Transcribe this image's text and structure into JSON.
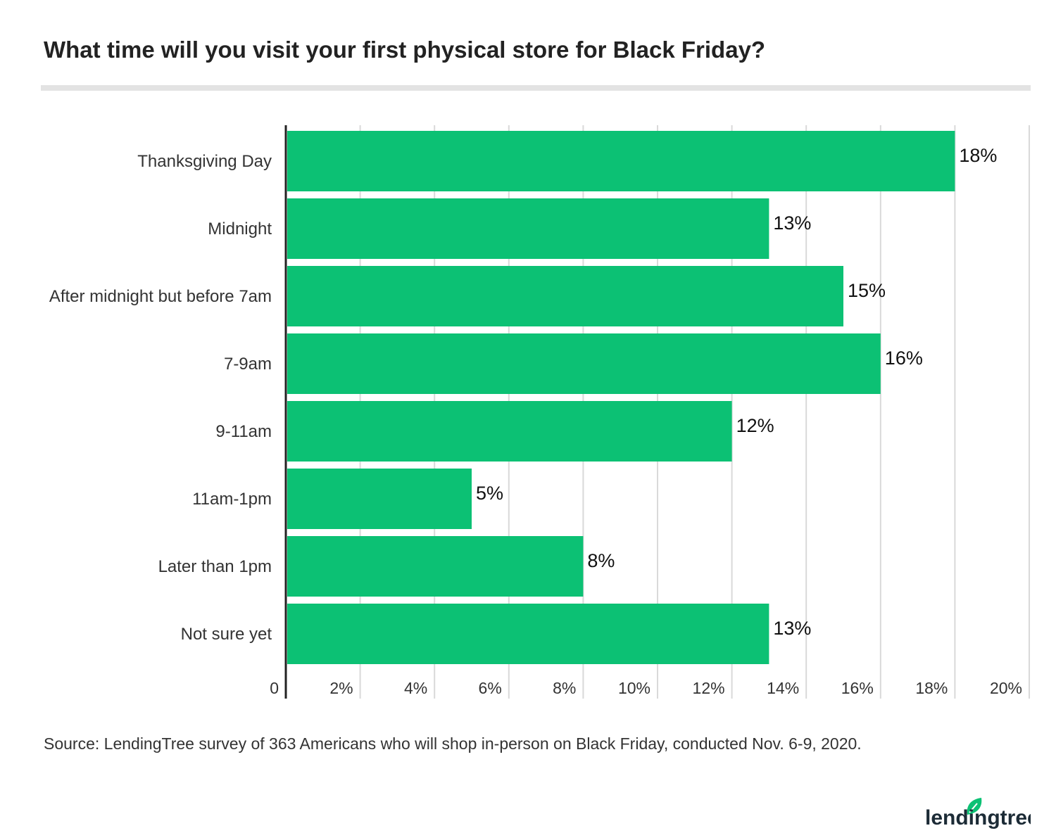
{
  "chart_data": {
    "type": "bar",
    "orientation": "horizontal",
    "title": "What time will you visit your first physical store for Black Friday?",
    "categories": [
      "Thanksgiving Day",
      "Midnight",
      "After midnight but before 7am",
      "7-9am",
      "9-11am",
      "11am-1pm",
      "Later than 1pm",
      "Not sure yet"
    ],
    "values": [
      18,
      13,
      15,
      16,
      12,
      5,
      8,
      13
    ],
    "data_labels": [
      "18%",
      "13%",
      "15%",
      "16%",
      "12%",
      "5%",
      "8%",
      "13%"
    ],
    "xlim": [
      0,
      20
    ],
    "x_ticks": [
      "0",
      "2%",
      "4%",
      "6%",
      "8%",
      "10%",
      "12%",
      "14%",
      "16%",
      "18%",
      "20%"
    ],
    "grid": true,
    "bar_color": "#0cc174",
    "source": "Source: LendingTree survey of 363 Americans who will shop in-person on Black Friday, conducted Nov. 6-9, 2020."
  },
  "logo": {
    "text": "lendingtree",
    "color": "#0cc174"
  }
}
